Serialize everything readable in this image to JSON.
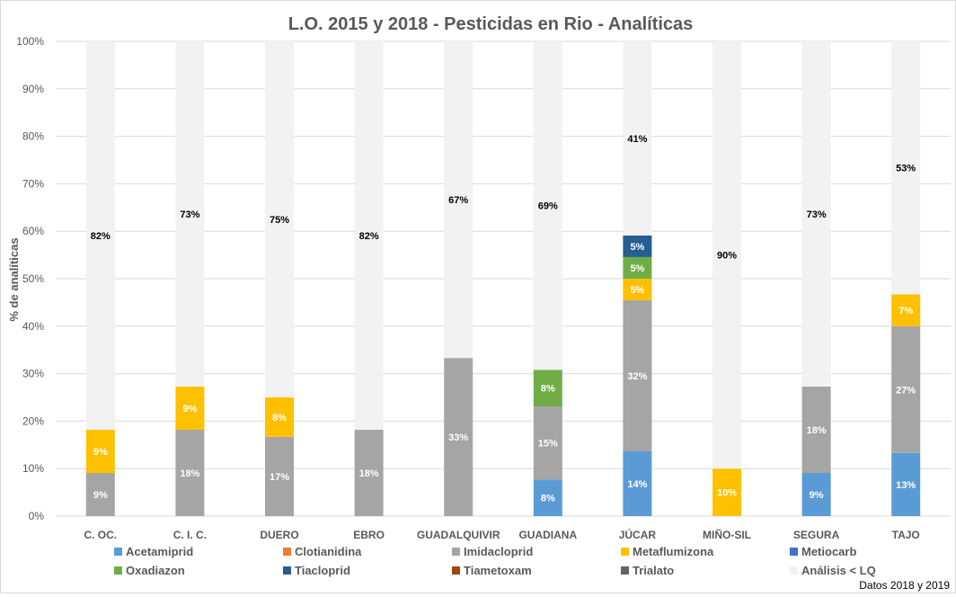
{
  "chart_data": {
    "type": "bar",
    "stacked": true,
    "title": "L.O. 2015 y 2018 - Pesticidas en Rio - Analíticas",
    "ylabel": "% de analíticas",
    "xlabel": "",
    "ylim": [
      0,
      100
    ],
    "yticks": [
      "0%",
      "10%",
      "20%",
      "30%",
      "40%",
      "50%",
      "60%",
      "70%",
      "80%",
      "90%",
      "100%"
    ],
    "grid": true,
    "legend_position": "bottom",
    "footnote": "Datos 2018 y 2019",
    "categories": [
      "C. OC.",
      "C. I. C.",
      "DUERO",
      "EBRO",
      "GUADALQUIVIR",
      "GUADIANA",
      "JÚCAR",
      "MIÑO-SIL",
      "SEGURA",
      "TAJO"
    ],
    "series": [
      {
        "name": "Acetamiprid",
        "color": "#5B9BD5",
        "values": [
          0,
          0,
          0,
          0,
          0,
          7.7,
          13.64,
          0,
          9.09,
          13.3
        ]
      },
      {
        "name": "Clotianidina",
        "color": "#ED7D31",
        "values": [
          0,
          0,
          0,
          0,
          0,
          0,
          0,
          0,
          0,
          0
        ]
      },
      {
        "name": "Imidacloprid",
        "color": "#A5A5A5",
        "values": [
          9.09,
          18.18,
          16.7,
          18.18,
          33.3,
          15.4,
          31.82,
          0,
          18.18,
          26.7
        ]
      },
      {
        "name": "Metaflumizona",
        "color": "#FFC000",
        "values": [
          9.09,
          9.09,
          8.3,
          0,
          0,
          0,
          4.55,
          10,
          0,
          6.7
        ]
      },
      {
        "name": "Metiocarb",
        "color": "#4472C4",
        "values": [
          0,
          0,
          0,
          0,
          0,
          0,
          0,
          0,
          0,
          0
        ]
      },
      {
        "name": "Oxadiazon",
        "color": "#70AD47",
        "values": [
          0,
          0,
          0,
          0,
          0,
          7.7,
          4.55,
          0,
          0,
          0
        ]
      },
      {
        "name": "Tiacloprid",
        "color": "#255E91",
        "values": [
          0,
          0,
          0,
          0,
          0,
          0,
          4.55,
          0,
          0,
          0
        ]
      },
      {
        "name": "Tiametoxam",
        "color": "#9E480E",
        "values": [
          0,
          0,
          0,
          0,
          0,
          0,
          0,
          0,
          0,
          0
        ]
      },
      {
        "name": "Trialato",
        "color": "#636363",
        "values": [
          0,
          0,
          0,
          0,
          0,
          0,
          0,
          0,
          0,
          0
        ]
      },
      {
        "name": "Análisis < LQ",
        "color": "#F2F2F2",
        "values": [
          81.82,
          72.73,
          75,
          81.82,
          66.7,
          69.2,
          40.91,
          90,
          72.73,
          53.3
        ]
      }
    ]
  }
}
